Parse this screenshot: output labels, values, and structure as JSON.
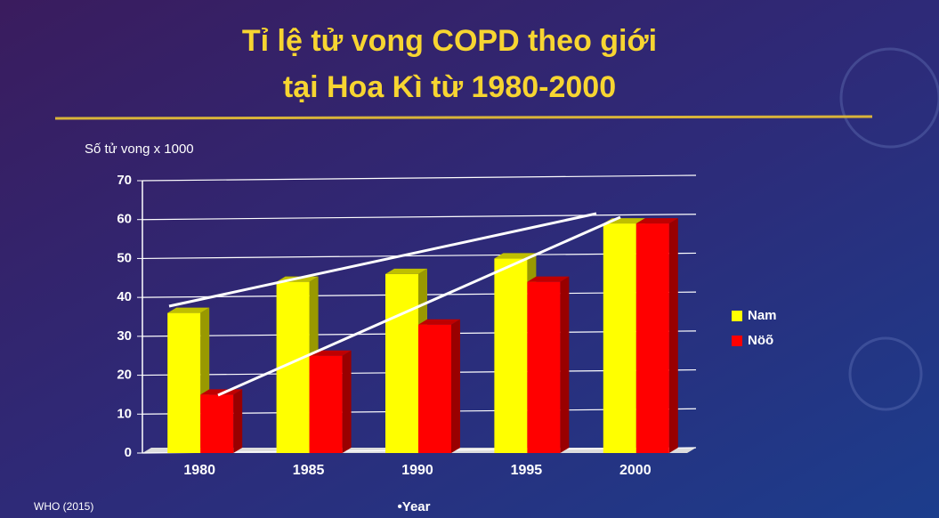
{
  "chart_data": {
    "type": "bar3d",
    "title": [
      "Tỉ lệ tử vong COPD theo giới",
      "tại Hoa Kì từ 1980-2000"
    ],
    "y_label": "Số tử vong x 1000",
    "x_label": "•Year",
    "source": "WHO (2015)",
    "categories": [
      "1980",
      "1985",
      "1990",
      "1995",
      "2000"
    ],
    "series": [
      {
        "name": "Nam",
        "color": "#ffff00",
        "values": [
          36,
          44,
          46,
          50,
          59
        ]
      },
      {
        "name": "Nöõ",
        "color": "#ff0000",
        "values": [
          15,
          25,
          33,
          44,
          59
        ]
      }
    ],
    "ylim": [
      0,
      70
    ],
    "yticks": [
      0,
      10,
      20,
      30,
      40,
      50,
      60,
      70
    ],
    "grid": true,
    "legend": "right"
  }
}
